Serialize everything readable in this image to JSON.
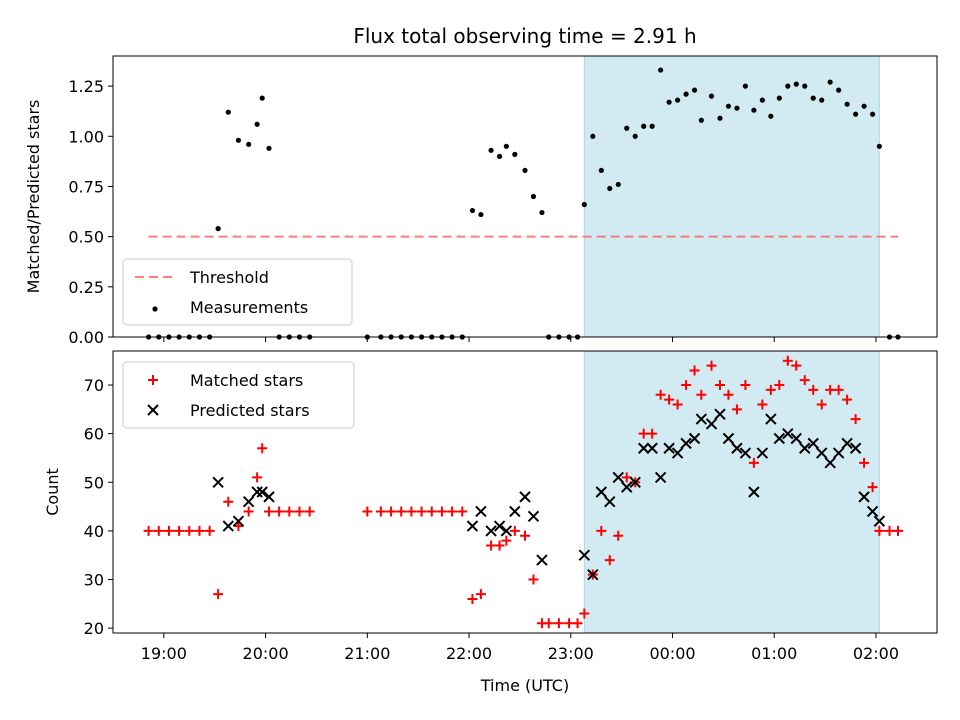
{
  "figure": {
    "title": "Flux total observing time = 2.91 h",
    "xlabel": "Time (UTC)"
  },
  "chart_data": [
    {
      "type": "scatter",
      "ylabel": "Matched/Predicted stars",
      "ylim": [
        0,
        1.4
      ],
      "yticks": [
        "0.00",
        "0.25",
        "0.50",
        "0.75",
        "1.00",
        "1.25"
      ],
      "xlim_hours": [
        18.5,
        26.6
      ],
      "xticks": [
        "19:00",
        "20:00",
        "21:00",
        "22:00",
        "23:00",
        "00:00",
        "01:00",
        "02:00"
      ],
      "highlight": {
        "x_start": "23:08",
        "x_end": "02:02",
        "color": "#add8e6"
      },
      "threshold": {
        "name": "Threshold",
        "value": 0.5,
        "x_start": "18:51",
        "x_end": "02:13",
        "color": "#ff6666"
      },
      "legend": {
        "placement": "lower-left",
        "entries": [
          "Threshold",
          "Measurements"
        ]
      },
      "series": [
        {
          "name": "Measurements",
          "marker": "dot",
          "color": "#000000",
          "points": [
            [
              "18:51",
              0.0
            ],
            [
              "18:57",
              0.0
            ],
            [
              "19:03",
              0.0
            ],
            [
              "19:09",
              0.0
            ],
            [
              "19:15",
              0.0
            ],
            [
              "19:21",
              0.0
            ],
            [
              "19:27",
              0.0
            ],
            [
              "19:32",
              0.54
            ],
            [
              "19:38",
              1.12
            ],
            [
              "19:44",
              0.98
            ],
            [
              "19:50",
              0.96
            ],
            [
              "19:55",
              1.06
            ],
            [
              "19:58",
              1.19
            ],
            [
              "20:02",
              0.94
            ],
            [
              "20:08",
              0.0
            ],
            [
              "20:14",
              0.0
            ],
            [
              "20:20",
              0.0
            ],
            [
              "20:26",
              0.0
            ],
            [
              "21:00",
              0.0
            ],
            [
              "21:08",
              0.0
            ],
            [
              "21:14",
              0.0
            ],
            [
              "21:20",
              0.0
            ],
            [
              "21:26",
              0.0
            ],
            [
              "21:32",
              0.0
            ],
            [
              "21:38",
              0.0
            ],
            [
              "21:44",
              0.0
            ],
            [
              "21:50",
              0.0
            ],
            [
              "21:56",
              0.0
            ],
            [
              "22:02",
              0.63
            ],
            [
              "22:07",
              0.61
            ],
            [
              "22:13",
              0.93
            ],
            [
              "22:18",
              0.9
            ],
            [
              "22:22",
              0.95
            ],
            [
              "22:27",
              0.91
            ],
            [
              "22:33",
              0.83
            ],
            [
              "22:38",
              0.7
            ],
            [
              "22:43",
              0.62
            ],
            [
              "22:47",
              0.0
            ],
            [
              "22:53",
              0.0
            ],
            [
              "22:59",
              0.0
            ],
            [
              "23:04",
              0.0
            ],
            [
              "23:08",
              0.66
            ],
            [
              "23:13",
              1.0
            ],
            [
              "23:18",
              0.83
            ],
            [
              "23:23",
              0.74
            ],
            [
              "23:28",
              0.76
            ],
            [
              "23:33",
              1.04
            ],
            [
              "23:38",
              1.0
            ],
            [
              "23:43",
              1.05
            ],
            [
              "23:48",
              1.05
            ],
            [
              "23:53",
              1.33
            ],
            [
              "23:58",
              1.17
            ],
            [
              "00:03",
              1.18
            ],
            [
              "00:08",
              1.21
            ],
            [
              "00:13",
              1.23
            ],
            [
              "00:17",
              1.08
            ],
            [
              "00:23",
              1.2
            ],
            [
              "00:28",
              1.09
            ],
            [
              "00:33",
              1.15
            ],
            [
              "00:38",
              1.14
            ],
            [
              "00:43",
              1.25
            ],
            [
              "00:48",
              1.13
            ],
            [
              "00:53",
              1.18
            ],
            [
              "00:58",
              1.1
            ],
            [
              "01:03",
              1.19
            ],
            [
              "01:08",
              1.25
            ],
            [
              "01:13",
              1.26
            ],
            [
              "01:18",
              1.25
            ],
            [
              "01:23",
              1.19
            ],
            [
              "01:28",
              1.18
            ],
            [
              "01:33",
              1.27
            ],
            [
              "01:38",
              1.23
            ],
            [
              "01:43",
              1.16
            ],
            [
              "01:48",
              1.11
            ],
            [
              "01:53",
              1.15
            ],
            [
              "01:58",
              1.11
            ],
            [
              "02:02",
              0.95
            ],
            [
              "02:08",
              0.0
            ],
            [
              "02:13",
              0.0
            ]
          ]
        }
      ]
    },
    {
      "type": "scatter",
      "ylabel": "Count",
      "ylim": [
        19,
        77
      ],
      "yticks": [
        "20",
        "30",
        "40",
        "50",
        "60",
        "70"
      ],
      "xlim_hours": [
        18.5,
        26.6
      ],
      "xticks": [
        "19:00",
        "20:00",
        "21:00",
        "22:00",
        "23:00",
        "00:00",
        "01:00",
        "02:00"
      ],
      "highlight": {
        "x_start": "23:08",
        "x_end": "02:02",
        "color": "#add8e6"
      },
      "legend": {
        "placement": "top-left",
        "entries": [
          "Matched stars",
          "Predicted stars"
        ]
      },
      "series": [
        {
          "name": "Matched stars",
          "marker": "plus",
          "color": "#ff0000",
          "points": [
            [
              "18:51",
              40
            ],
            [
              "18:57",
              40
            ],
            [
              "19:03",
              40
            ],
            [
              "19:09",
              40
            ],
            [
              "19:15",
              40
            ],
            [
              "19:21",
              40
            ],
            [
              "19:27",
              40
            ],
            [
              "19:32",
              27
            ],
            [
              "19:38",
              46
            ],
            [
              "19:44",
              41
            ],
            [
              "19:50",
              44
            ],
            [
              "19:55",
              51
            ],
            [
              "19:58",
              57
            ],
            [
              "20:02",
              44
            ],
            [
              "20:08",
              44
            ],
            [
              "20:14",
              44
            ],
            [
              "20:20",
              44
            ],
            [
              "20:26",
              44
            ],
            [
              "21:00",
              44
            ],
            [
              "21:08",
              44
            ],
            [
              "21:14",
              44
            ],
            [
              "21:20",
              44
            ],
            [
              "21:26",
              44
            ],
            [
              "21:32",
              44
            ],
            [
              "21:38",
              44
            ],
            [
              "21:44",
              44
            ],
            [
              "21:50",
              44
            ],
            [
              "21:56",
              44
            ],
            [
              "22:02",
              26
            ],
            [
              "22:07",
              27
            ],
            [
              "22:13",
              37
            ],
            [
              "22:18",
              37
            ],
            [
              "22:22",
              38
            ],
            [
              "22:27",
              40
            ],
            [
              "22:33",
              39
            ],
            [
              "22:38",
              30
            ],
            [
              "22:43",
              21
            ],
            [
              "22:47",
              21
            ],
            [
              "22:53",
              21
            ],
            [
              "22:59",
              21
            ],
            [
              "23:04",
              21
            ],
            [
              "23:08",
              23
            ],
            [
              "23:13",
              31
            ],
            [
              "23:18",
              40
            ],
            [
              "23:23",
              34
            ],
            [
              "23:28",
              39
            ],
            [
              "23:33",
              51
            ],
            [
              "23:38",
              50
            ],
            [
              "23:43",
              60
            ],
            [
              "23:48",
              60
            ],
            [
              "23:53",
              68
            ],
            [
              "23:58",
              67
            ],
            [
              "00:03",
              66
            ],
            [
              "00:08",
              70
            ],
            [
              "00:13",
              73
            ],
            [
              "00:17",
              68
            ],
            [
              "00:23",
              74
            ],
            [
              "00:28",
              70
            ],
            [
              "00:33",
              68
            ],
            [
              "00:38",
              65
            ],
            [
              "00:43",
              70
            ],
            [
              "00:48",
              54
            ],
            [
              "00:53",
              66
            ],
            [
              "00:58",
              69
            ],
            [
              "01:03",
              70
            ],
            [
              "01:08",
              75
            ],
            [
              "01:13",
              74
            ],
            [
              "01:18",
              71
            ],
            [
              "01:23",
              69
            ],
            [
              "01:28",
              66
            ],
            [
              "01:33",
              69
            ],
            [
              "01:38",
              69
            ],
            [
              "01:43",
              67
            ],
            [
              "01:48",
              63
            ],
            [
              "01:53",
              54
            ],
            [
              "01:58",
              49
            ],
            [
              "02:02",
              40
            ],
            [
              "02:08",
              40
            ],
            [
              "02:13",
              40
            ]
          ]
        },
        {
          "name": "Predicted stars",
          "marker": "x",
          "color": "#000000",
          "points": [
            [
              "19:32",
              50
            ],
            [
              "19:38",
              41
            ],
            [
              "19:44",
              42
            ],
            [
              "19:50",
              46
            ],
            [
              "19:55",
              48
            ],
            [
              "19:58",
              48
            ],
            [
              "20:02",
              47
            ],
            [
              "22:02",
              41
            ],
            [
              "22:07",
              44
            ],
            [
              "22:13",
              40
            ],
            [
              "22:18",
              41
            ],
            [
              "22:22",
              40
            ],
            [
              "22:27",
              44
            ],
            [
              "22:33",
              47
            ],
            [
              "22:38",
              43
            ],
            [
              "22:43",
              34
            ],
            [
              "23:08",
              35
            ],
            [
              "23:13",
              31
            ],
            [
              "23:18",
              48
            ],
            [
              "23:23",
              46
            ],
            [
              "23:28",
              51
            ],
            [
              "23:33",
              49
            ],
            [
              "23:38",
              50
            ],
            [
              "23:43",
              57
            ],
            [
              "23:48",
              57
            ],
            [
              "23:53",
              51
            ],
            [
              "23:58",
              57
            ],
            [
              "00:03",
              56
            ],
            [
              "00:08",
              58
            ],
            [
              "00:13",
              59
            ],
            [
              "00:17",
              63
            ],
            [
              "00:23",
              62
            ],
            [
              "00:28",
              64
            ],
            [
              "00:33",
              59
            ],
            [
              "00:38",
              57
            ],
            [
              "00:43",
              56
            ],
            [
              "00:48",
              48
            ],
            [
              "00:53",
              56
            ],
            [
              "00:58",
              63
            ],
            [
              "01:03",
              59
            ],
            [
              "01:08",
              60
            ],
            [
              "01:13",
              59
            ],
            [
              "01:18",
              57
            ],
            [
              "01:23",
              58
            ],
            [
              "01:28",
              56
            ],
            [
              "01:33",
              54
            ],
            [
              "01:38",
              56
            ],
            [
              "01:43",
              58
            ],
            [
              "01:48",
              57
            ],
            [
              "01:53",
              47
            ],
            [
              "01:58",
              44
            ],
            [
              "02:02",
              42
            ]
          ]
        }
      ]
    }
  ]
}
